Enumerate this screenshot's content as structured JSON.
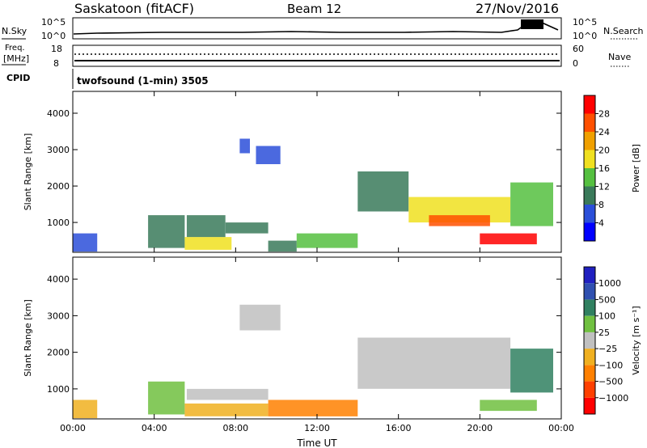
{
  "header": {
    "station": "Saskatoon (fitACF)",
    "beam": "Beam 12",
    "date": "27/Nov/2016"
  },
  "top_panels": {
    "nsky_label": "N.Sky",
    "nsky_ticks": [
      "10^5",
      "10^0"
    ],
    "nsearch_label": "N.Search",
    "nsearch_ticks": [
      "10^5",
      "10^0"
    ],
    "freq_label_line1": "Freq.",
    "freq_label_line2": "[MHz]",
    "freq_ticks": [
      "18",
      "8"
    ],
    "nave_label": "Nave",
    "nave_ticks": [
      "60",
      "0"
    ],
    "cpid_label": "CPID",
    "cpid_text": "twofsound (1-min) 3505"
  },
  "chart_data": [
    {
      "type": "heatmap",
      "name": "power-panel",
      "xlabel": "Time UT",
      "ylabel": "Slant Range [km]",
      "xlim": [
        0,
        24
      ],
      "ylim": [
        180,
        4600
      ],
      "x_ticks": [
        "00:00",
        "04:00",
        "08:00",
        "12:00",
        "16:00",
        "20:00",
        "00:00"
      ],
      "y_ticks": [
        "1000",
        "2000",
        "3000",
        "4000"
      ],
      "y_tick_values": [
        1000,
        2000,
        3000,
        4000
      ],
      "colorbar": {
        "label": "Power [dB]",
        "range": [
          0,
          32
        ],
        "ticks": [
          "4",
          "8",
          "12",
          "16",
          "20",
          "24",
          "28"
        ],
        "colors": [
          "#0000ff",
          "#2b4fd9",
          "#3a7a5a",
          "#55c040",
          "#f0e020",
          "#f0a000",
          "#ff5000",
          "#ff0000"
        ]
      },
      "regions": [
        {
          "t0": 0.0,
          "t1": 1.2,
          "r0": 200,
          "r1": 700,
          "value": 5
        },
        {
          "t0": 3.7,
          "t1": 5.5,
          "r0": 300,
          "r1": 1200,
          "value": 9
        },
        {
          "t0": 5.5,
          "t1": 7.8,
          "r0": 250,
          "r1": 600,
          "value": 18
        },
        {
          "t0": 5.6,
          "t1": 7.5,
          "r0": 600,
          "r1": 1200,
          "value": 8
        },
        {
          "t0": 7.5,
          "t1": 9.6,
          "r0": 700,
          "r1": 1000,
          "value": 10
        },
        {
          "t0": 8.2,
          "t1": 8.7,
          "r0": 2900,
          "r1": 3300,
          "value": 5
        },
        {
          "t0": 9.0,
          "t1": 10.2,
          "r0": 2600,
          "r1": 3100,
          "value": 7
        },
        {
          "t0": 9.6,
          "t1": 11.0,
          "r0": 200,
          "r1": 500,
          "value": 8
        },
        {
          "t0": 11.0,
          "t1": 14.0,
          "r0": 300,
          "r1": 700,
          "value": 12
        },
        {
          "t0": 14.0,
          "t1": 16.5,
          "r0": 1300,
          "r1": 2400,
          "value": 10
        },
        {
          "t0": 16.5,
          "t1": 21.5,
          "r0": 1000,
          "r1": 1700,
          "value": 18
        },
        {
          "t0": 17.5,
          "t1": 20.5,
          "r0": 900,
          "r1": 1200,
          "value": 26
        },
        {
          "t0": 20.0,
          "t1": 22.8,
          "r0": 400,
          "r1": 700,
          "value": 30
        },
        {
          "t0": 21.5,
          "t1": 23.6,
          "r0": 900,
          "r1": 2100,
          "value": 14
        }
      ]
    },
    {
      "type": "heatmap",
      "name": "velocity-panel",
      "xlabel": "Time UT",
      "ylabel": "Slant Range [km]",
      "xlim": [
        0,
        24
      ],
      "ylim": [
        180,
        4600
      ],
      "x_ticks": [
        "00:00",
        "04:00",
        "08:00",
        "12:00",
        "16:00",
        "20:00",
        "00:00"
      ],
      "y_ticks": [
        "1000",
        "2000",
        "3000",
        "4000"
      ],
      "y_tick_values": [
        1000,
        2000,
        3000,
        4000
      ],
      "colorbar": {
        "label": "Velocity [m s⁻¹]",
        "ticks": [
          "1000",
          "500",
          "100",
          "25",
          "−25",
          "−100",
          "−500",
          "−1000"
        ],
        "colors": [
          "#2020c0",
          "#3050b0",
          "#308060",
          "#70c040",
          "#c0c0c0",
          "#f0b020",
          "#ff8000",
          "#ff4000",
          "#ff0000"
        ]
      },
      "regions": [
        {
          "t0": 0.0,
          "t1": 1.2,
          "r0": 200,
          "r1": 700,
          "value": "#f0b020"
        },
        {
          "t0": 3.7,
          "t1": 5.5,
          "r0": 300,
          "r1": 1200,
          "value": "#70c040"
        },
        {
          "t0": 5.5,
          "t1": 9.6,
          "r0": 250,
          "r1": 600,
          "value": "#f0b020"
        },
        {
          "t0": 5.6,
          "t1": 9.6,
          "r0": 700,
          "r1": 1000,
          "value": "#c0c0c0"
        },
        {
          "t0": 8.2,
          "t1": 10.2,
          "r0": 2600,
          "r1": 3300,
          "value": "#c0c0c0"
        },
        {
          "t0": 9.6,
          "t1": 14.0,
          "r0": 250,
          "r1": 700,
          "value": "#ff8000"
        },
        {
          "t0": 14.0,
          "t1": 21.5,
          "r0": 1000,
          "r1": 2400,
          "value": "#c0c0c0"
        },
        {
          "t0": 20.0,
          "t1": 22.8,
          "r0": 400,
          "r1": 700,
          "value": "#70c040"
        },
        {
          "t0": 21.5,
          "t1": 23.6,
          "r0": 900,
          "r1": 2100,
          "value": "#308060"
        }
      ]
    }
  ]
}
